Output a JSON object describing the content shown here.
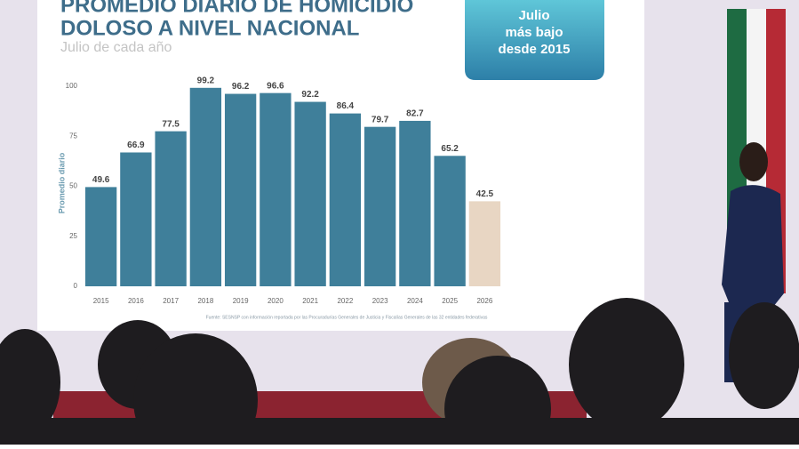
{
  "chart_data": {
    "type": "bar",
    "title_lines": [
      "PROMEDIO DIARIO DE HOMICIDIO",
      "DOLOSO A NIVEL NACIONAL"
    ],
    "subtitle": "Julio de cada año",
    "callout": [
      "Julio",
      "más bajo",
      "desde 2015"
    ],
    "y_label": "Promedio diario",
    "source": "Fuente: SESNSP con información reportada por las Procuradurías Generales de Justicia y Fiscalías Generales de las 32 entidades federativas",
    "categories": [
      "2015",
      "2016",
      "2017",
      "2018",
      "2019",
      "2020",
      "2021",
      "2022",
      "2023",
      "2024",
      "2025",
      "2026"
    ],
    "values": [
      49.6,
      66.9,
      77.5,
      99.2,
      96.2,
      96.6,
      92.2,
      86.4,
      79.7,
      82.7,
      65.2,
      42.5
    ],
    "colors": [
      "#3f7f9a",
      "#3f7f9a",
      "#3f7f9a",
      "#3f7f9a",
      "#3f7f9a",
      "#3f7f9a",
      "#3f7f9a",
      "#3f7f9a",
      "#3f7f9a",
      "#3f7f9a",
      "#3f7f9a",
      "#e8d6c3"
    ],
    "ylim": [
      0,
      100
    ],
    "yticks": [
      0,
      25,
      50,
      75,
      100
    ],
    "grid": false
  }
}
